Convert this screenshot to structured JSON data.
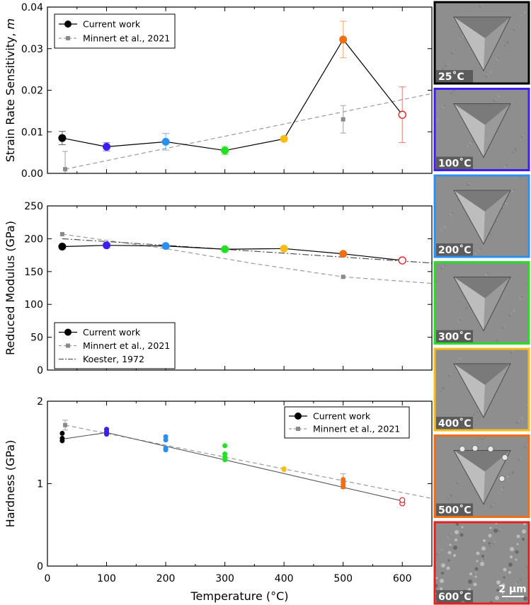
{
  "chart_data": [
    {
      "type": "line",
      "id": "m",
      "ylabel": "Strain Rate Sensitivity, m",
      "ylabel_main": "Strain Rate Sensitivity, ",
      "ylabel_symbol": "m",
      "xlim": [
        0,
        650
      ],
      "ylim": [
        0,
        0.04
      ],
      "yticks": [
        0,
        0.01,
        0.02,
        0.03,
        0.04
      ],
      "ytick_labels": [
        "0.00",
        "0.01",
        "0.02",
        "0.03",
        "0.04"
      ],
      "legend": [
        {
          "label": "Current work",
          "style": "current"
        },
        {
          "label": "Minnert et al., 2021",
          "style": "minnert"
        }
      ],
      "current": [
        {
          "x": 25,
          "y": 0.0085,
          "err": 0.0016,
          "color": "#000000",
          "open": false
        },
        {
          "x": 100,
          "y": 0.0064,
          "err": 0.001,
          "color": "#3f1ef5",
          "open": false
        },
        {
          "x": 200,
          "y": 0.0076,
          "err": 0.002,
          "color": "#2a8ff5",
          "open": false
        },
        {
          "x": 300,
          "y": 0.0055,
          "err": 0.001,
          "color": "#22e022",
          "open": false
        },
        {
          "x": 400,
          "y": 0.0083,
          "err": 0.0005,
          "color": "#f6bd18",
          "open": false
        },
        {
          "x": 500,
          "y": 0.0322,
          "err": 0.0044,
          "color": "#f26e12",
          "open": false
        },
        {
          "x": 600,
          "y": 0.0141,
          "err": 0.0067,
          "color": "#e62020",
          "open": true
        }
      ],
      "minnert": [
        {
          "x": 30,
          "y": 0.001,
          "err": 0.0043
        },
        {
          "x": 500,
          "y": 0.013,
          "err": 0.0033
        }
      ],
      "minnert_trend": [
        [
          30,
          0.001
        ],
        [
          650,
          0.0192
        ]
      ]
    },
    {
      "type": "line",
      "id": "modulus",
      "ylabel": "Reduced Modulus (GPa)",
      "xlim": [
        0,
        650
      ],
      "ylim": [
        0,
        250
      ],
      "yticks": [
        0,
        50,
        100,
        150,
        200,
        250
      ],
      "ytick_labels": [
        "0",
        "50",
        "100",
        "150",
        "200",
        "250"
      ],
      "legend": [
        {
          "label": "Current work",
          "style": "current"
        },
        {
          "label": "Minnert et al., 2021",
          "style": "minnert"
        },
        {
          "label": "Koester, 1972",
          "style": "koester"
        }
      ],
      "current": [
        {
          "x": 25,
          "y": 188,
          "color": "#000000",
          "open": false
        },
        {
          "x": 100,
          "y": 190,
          "color": "#3f1ef5",
          "open": false
        },
        {
          "x": 200,
          "y": 189,
          "color": "#2a8ff5",
          "open": false
        },
        {
          "x": 300,
          "y": 184,
          "color": "#22e022",
          "open": false
        },
        {
          "x": 400,
          "y": 185,
          "color": "#f6bd18",
          "open": false
        },
        {
          "x": 500,
          "y": 177,
          "color": "#f26e12",
          "open": false
        },
        {
          "x": 600,
          "y": 167,
          "color": "#e62020",
          "open": true
        }
      ],
      "minnert": [
        {
          "x": 25,
          "y": 207
        },
        {
          "x": 500,
          "y": 142
        }
      ],
      "minnert_trend": [
        [
          25,
          207
        ],
        [
          200,
          185
        ],
        [
          350,
          162
        ],
        [
          500,
          142
        ],
        [
          650,
          132
        ]
      ],
      "koester": [
        [
          25,
          200
        ],
        [
          200,
          190
        ],
        [
          400,
          178
        ],
        [
          650,
          163
        ]
      ]
    },
    {
      "type": "scatter",
      "id": "hardness",
      "ylabel": "Hardness (GPa)",
      "xlabel": "Temperature (°C)",
      "xlim": [
        0,
        650
      ],
      "ylim": [
        0,
        2
      ],
      "yticks": [
        0,
        1,
        2
      ],
      "ytick_labels": [
        "0",
        "1",
        "2"
      ],
      "xticks": [
        0,
        100,
        200,
        300,
        400,
        500,
        600
      ],
      "xtick_labels": [
        "0",
        "100",
        "200",
        "300",
        "400",
        "500",
        "600"
      ],
      "legend": [
        {
          "label": "Current work",
          "style": "current"
        },
        {
          "label": "Minnert et al., 2021",
          "style": "minnert"
        }
      ],
      "points": [
        {
          "x": 25,
          "ys": [
            1.52,
            1.55,
            1.61
          ],
          "color": "#000000",
          "open": false
        },
        {
          "x": 100,
          "ys": [
            1.6,
            1.62,
            1.64,
            1.66
          ],
          "color": "#3f1ef5",
          "open": false
        },
        {
          "x": 200,
          "ys": [
            1.41,
            1.43,
            1.53,
            1.57
          ],
          "color": "#2a8ff5",
          "open": false
        },
        {
          "x": 300,
          "ys": [
            1.29,
            1.32,
            1.36,
            1.46
          ],
          "color": "#22e022",
          "open": false
        },
        {
          "x": 400,
          "ys": [
            1.17,
            1.18
          ],
          "color": "#f6bd18",
          "open": false
        },
        {
          "x": 500,
          "ys": [
            0.96,
            0.99,
            1.02,
            1.05
          ],
          "color": "#f26e12",
          "open": false
        },
        {
          "x": 600,
          "ys": [
            0.76,
            0.8
          ],
          "color": "#e62020",
          "open": true
        }
      ],
      "current_trend": [
        [
          25,
          1.54
        ],
        [
          100,
          1.62
        ],
        [
          600,
          0.79
        ]
      ],
      "minnert": [
        {
          "x": 30,
          "y": 1.71,
          "err": 0.06
        },
        {
          "x": 500,
          "y": 1.03,
          "err": 0.09
        }
      ],
      "minnert_trend": [
        [
          30,
          1.71
        ],
        [
          650,
          0.82
        ]
      ]
    }
  ],
  "sem_images": [
    {
      "label": "25˚C",
      "border": "#000000"
    },
    {
      "label": "100˚C",
      "border": "#3f1ef5"
    },
    {
      "label": "200˚C",
      "border": "#2a8ff5"
    },
    {
      "label": "300˚C",
      "border": "#22e022"
    },
    {
      "label": "400˚C",
      "border": "#f6bd18"
    },
    {
      "label": "500˚C",
      "border": "#f26e12"
    },
    {
      "label": "600˚C",
      "border": "#e62020"
    }
  ],
  "scale_bar": "2 µm"
}
